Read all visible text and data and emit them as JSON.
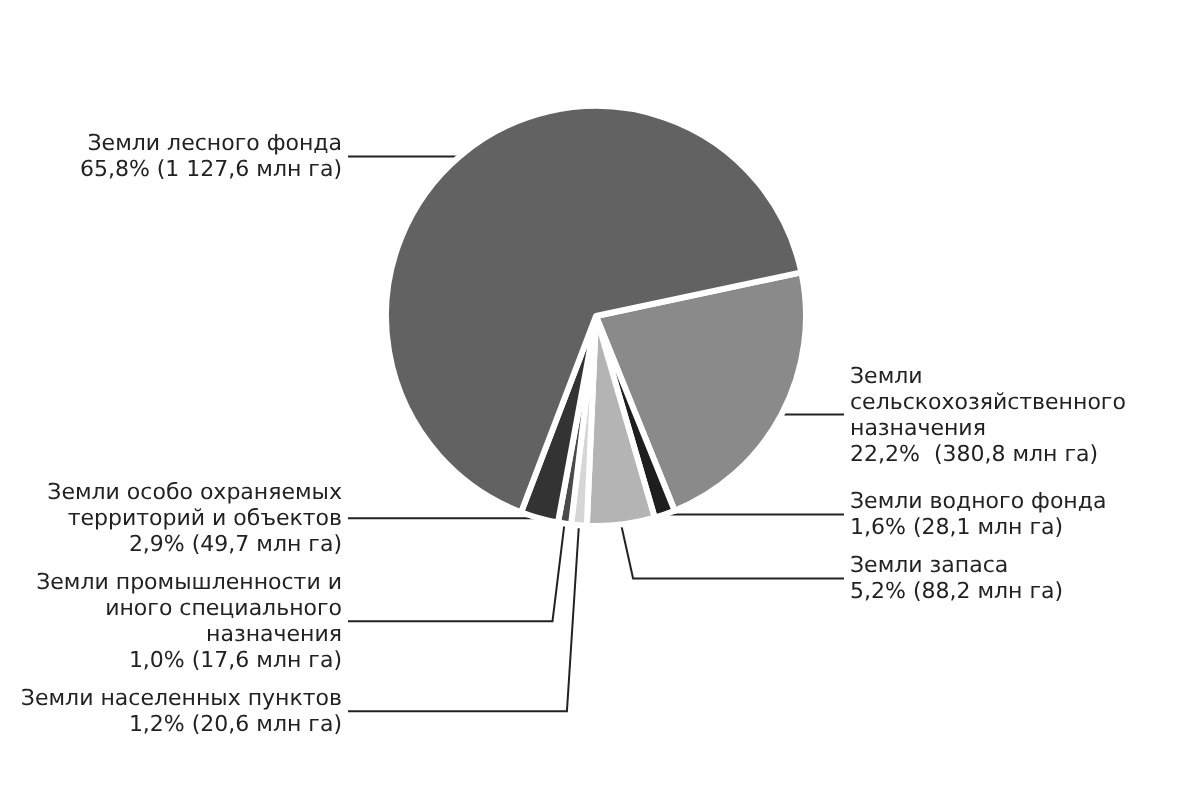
{
  "chart_data": {
    "type": "pie",
    "categories": [
      "Земли сельскохозяйственного назначения",
      "Земли водного фонда",
      "Земли запаса",
      "Земли населенных пунктов",
      "Земли промышленности и иного специального назначения",
      "Земли особо охраняемых территорий и объектов",
      "Земли лесного фонда"
    ],
    "values": [
      22.2,
      1.6,
      5.2,
      1.2,
      1.0,
      2.9,
      65.8
    ],
    "value_labels": [
      "22,2%  (380,8 млн га)",
      "1,6% (28,1 млн га)",
      "5,2% (88,2 млн га)",
      "1,2% (20,6 млн га)",
      "1,0% (17,6 млн га)",
      "2,9% (49,7 млн га)",
      "65,8% (1 127,6 млн га)"
    ],
    "colors": [
      "#8a8a8a",
      "#1e1e1e",
      "#b4b4b4",
      "#d6d6d6",
      "#4a4a4a",
      "#333333",
      "#626262"
    ]
  }
}
